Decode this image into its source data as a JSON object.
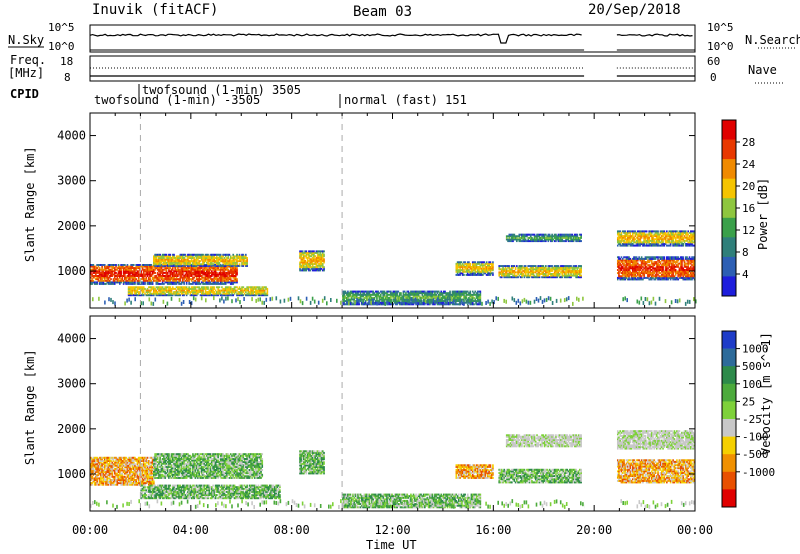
{
  "header": {
    "title": "Inuvik (fitACF)",
    "beam": "Beam 03",
    "date": "20/Sep/2018"
  },
  "noise_panel": {
    "left_label": "N.Sky",
    "right_label": "N.Search",
    "ticks_left": [
      "10^5",
      "10^0"
    ],
    "ticks_right": [
      "10^5",
      "10^0"
    ]
  },
  "freq_panel": {
    "label_line1": "Freq.",
    "label_line2": "[MHz]",
    "right_label": "Nave",
    "ticks_left": [
      "18",
      "8"
    ],
    "ticks_right": [
      "60",
      "0"
    ]
  },
  "cpid": {
    "label": "CPID",
    "programs": [
      {
        "name": "twofsound (1-min) 3505",
        "start_hour": 2.0
      },
      {
        "name": "twofsound (1-min) -3505",
        "start_hour": 0.0
      },
      {
        "name": "normal (fast) 151",
        "start_hour": 10.0
      }
    ]
  },
  "x_axis": {
    "label": "Time UT",
    "ticks": [
      "00:00",
      "04:00",
      "08:00",
      "12:00",
      "16:00",
      "20:00",
      "00:00"
    ]
  },
  "chart_data": [
    {
      "type": "heatmap",
      "panel": "power",
      "ylabel": "Slant Range [km]",
      "xlabel": "",
      "ylim": [
        180,
        4500
      ],
      "yticks": [
        1000,
        2000,
        3000,
        4000
      ],
      "xlim_hours": [
        0,
        24
      ],
      "colorbar": {
        "label": "Power [dB]",
        "ticks": [
          "4",
          "8",
          "12",
          "16",
          "20",
          "24",
          "28"
        ],
        "colors": [
          "#1e1edc",
          "#2d5fb4",
          "#2f7f7a",
          "#3aa04a",
          "#8ec63f",
          "#f5c400",
          "#f08a00",
          "#e83800",
          "#e00000"
        ]
      },
      "echo_regions": [
        {
          "t": [
            0.0,
            5.8
          ],
          "range": [
            700,
            1150
          ],
          "level": "high"
        },
        {
          "t": [
            2.5,
            6.2
          ],
          "range": [
            1100,
            1350
          ],
          "level": "medium"
        },
        {
          "t": [
            1.5,
            7.0
          ],
          "range": [
            450,
            650
          ],
          "level": "medium"
        },
        {
          "t": [
            8.3,
            9.3
          ],
          "range": [
            1000,
            1450
          ],
          "level": "medium"
        },
        {
          "t": [
            10.0,
            15.5
          ],
          "range": [
            250,
            550
          ],
          "level": "low"
        },
        {
          "t": [
            14.5,
            16.0
          ],
          "range": [
            900,
            1200
          ],
          "level": "medium"
        },
        {
          "t": [
            16.2,
            19.5
          ],
          "range": [
            850,
            1100
          ],
          "level": "medium"
        },
        {
          "t": [
            16.5,
            19.5
          ],
          "range": [
            1650,
            1800
          ],
          "level": "low"
        },
        {
          "t": [
            20.9,
            24.0
          ],
          "range": [
            800,
            1300
          ],
          "level": "high"
        },
        {
          "t": [
            20.9,
            24.0
          ],
          "range": [
            1550,
            1900
          ],
          "level": "medium"
        }
      ]
    },
    {
      "type": "heatmap",
      "panel": "velocity",
      "ylabel": "Slant Range [km]",
      "xlabel": "Time UT",
      "ylim": [
        180,
        4500
      ],
      "yticks": [
        1000,
        2000,
        3000,
        4000
      ],
      "xlim_hours": [
        0,
        24
      ],
      "colorbar": {
        "label": "Velocity [m s^-1]",
        "ticks": [
          "1000",
          "500",
          "100",
          "25",
          "-25",
          "-100",
          "-500",
          "-1000"
        ],
        "colors": [
          "#1e3cc8",
          "#2d6b9a",
          "#2d8a4a",
          "#4caa3c",
          "#7ed13a",
          "#c8c8c8",
          "#f5d000",
          "#f09000",
          "#e85000",
          "#e00000"
        ]
      },
      "echo_regions": [
        {
          "t": [
            0.0,
            2.5
          ],
          "range": [
            750,
            1350
          ],
          "level": "orange"
        },
        {
          "t": [
            2.5,
            6.8
          ],
          "range": [
            900,
            1450
          ],
          "level": "green"
        },
        {
          "t": [
            2.0,
            7.5
          ],
          "range": [
            450,
            750
          ],
          "level": "green"
        },
        {
          "t": [
            8.3,
            9.3
          ],
          "range": [
            1000,
            1500
          ],
          "level": "green"
        },
        {
          "t": [
            10.0,
            15.5
          ],
          "range": [
            250,
            550
          ],
          "level": "green"
        },
        {
          "t": [
            14.5,
            16.0
          ],
          "range": [
            900,
            1200
          ],
          "level": "orange"
        },
        {
          "t": [
            16.2,
            19.5
          ],
          "range": [
            800,
            1100
          ],
          "level": "green"
        },
        {
          "t": [
            16.5,
            19.5
          ],
          "range": [
            1600,
            1850
          ],
          "level": "gray"
        },
        {
          "t": [
            20.9,
            24.0
          ],
          "range": [
            800,
            1300
          ],
          "level": "orange"
        },
        {
          "t": [
            20.9,
            24.0
          ],
          "range": [
            1550,
            1950
          ],
          "level": "gray"
        }
      ]
    }
  ]
}
